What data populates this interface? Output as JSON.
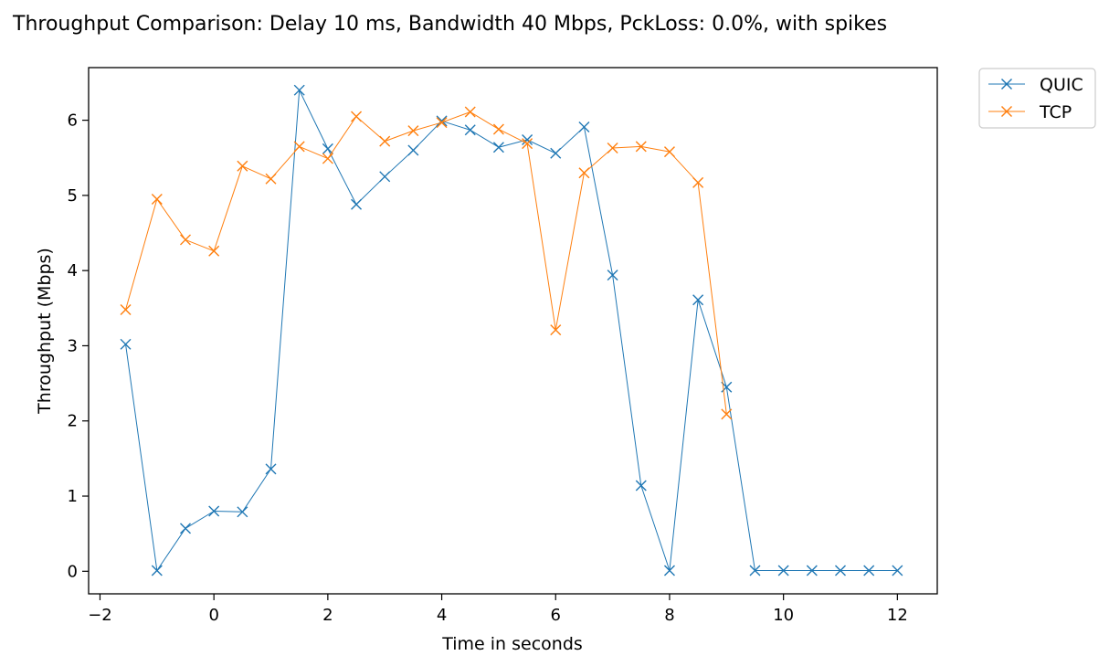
{
  "chart_data": {
    "type": "line",
    "title": "Throughput Comparison: Delay 10 ms, Bandwidth 40 Mbps, PckLoss: 0.0%, with spikes",
    "xlabel": "Time in seconds",
    "ylabel": "Throughput (Mbps)",
    "xlim": [
      -2.2,
      12.7
    ],
    "ylim": [
      -0.3,
      6.7
    ],
    "xticks": [
      -2,
      0,
      2,
      4,
      6,
      8,
      10,
      12
    ],
    "xtick_labels": [
      "−2",
      "0",
      "2",
      "4",
      "6",
      "8",
      "10",
      "12"
    ],
    "yticks": [
      0,
      1,
      2,
      3,
      4,
      5,
      6
    ],
    "ytick_labels": [
      "0",
      "1",
      "2",
      "3",
      "4",
      "5",
      "6"
    ],
    "grid": false,
    "legend_position": "outside-top-right",
    "marker": "x",
    "series": [
      {
        "name": "QUIC",
        "color": "#1f77b4",
        "x": [
          -1.55,
          -1.0,
          -0.5,
          0.0,
          0.5,
          1.0,
          1.5,
          2.0,
          2.5,
          3.0,
          3.5,
          4.0,
          4.5,
          5.0,
          5.5,
          6.0,
          6.5,
          7.0,
          7.5,
          8.0,
          8.5,
          9.0,
          9.5,
          10.0,
          10.5,
          11.0,
          11.5,
          12.0
        ],
        "y": [
          3.02,
          0.01,
          0.57,
          0.8,
          0.79,
          1.36,
          6.4,
          5.62,
          4.88,
          5.25,
          5.6,
          5.99,
          5.87,
          5.64,
          5.74,
          5.56,
          5.91,
          3.94,
          1.14,
          0.01,
          3.61,
          2.45,
          0.01,
          0.01,
          0.01,
          0.01,
          0.01,
          0.01
        ]
      },
      {
        "name": "TCP",
        "color": "#ff7f0e",
        "x": [
          -1.55,
          -1.0,
          -0.5,
          0.0,
          0.5,
          1.0,
          1.5,
          2.0,
          2.5,
          3.0,
          3.5,
          4.0,
          4.5,
          5.0,
          5.5,
          6.0,
          6.5,
          7.0,
          7.5,
          8.0,
          8.5,
          9.0
        ],
        "y": [
          3.48,
          4.95,
          4.41,
          4.26,
          5.39,
          5.22,
          5.65,
          5.49,
          6.05,
          5.72,
          5.86,
          5.97,
          6.11,
          5.88,
          5.69,
          3.21,
          5.3,
          5.63,
          5.65,
          5.58,
          5.17,
          2.09
        ]
      }
    ]
  }
}
